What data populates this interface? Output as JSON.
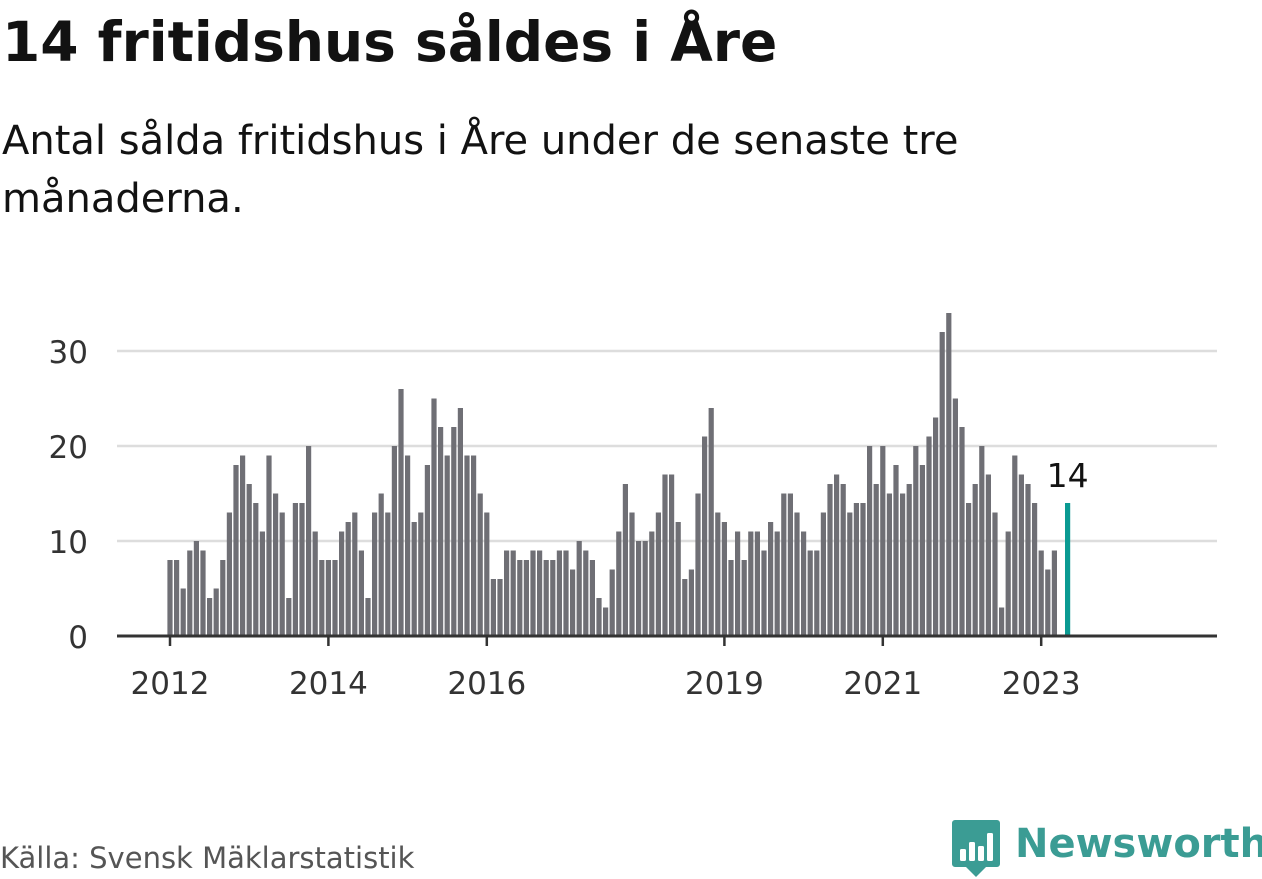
{
  "title": "14 fritidshus såldes i Åre",
  "subtitle": "Antal sålda fritidshus i Åre under de senaste tre månaderna.",
  "source": "Källa: Svensk Mäklarstatistik",
  "brand": {
    "name": "Newsworthy",
    "icon": "newsworthy-logo-icon"
  },
  "colors": {
    "bar": "#6f6f75",
    "highlight": "#0a9a92",
    "grid": "#dddddd",
    "axis": "#333333",
    "text": "#121212",
    "brand": "#3b9c94"
  },
  "chart_data": {
    "type": "bar",
    "x_unit": "month",
    "x_start": "2012-01",
    "ylim": [
      0,
      34
    ],
    "yticks": [
      0,
      10,
      20,
      30
    ],
    "ytick_labels": [
      "0",
      "10",
      "20",
      "30"
    ],
    "xticks": [
      "2012-01",
      "2014-01",
      "2016-01",
      "2019-01",
      "2021-01",
      "2023-01"
    ],
    "xtick_labels": [
      "2012",
      "2014",
      "2016",
      "2019",
      "2021",
      "2023"
    ],
    "grid": true,
    "highlight_index": 136,
    "highlight_label": "14",
    "values": [
      8,
      8,
      5,
      9,
      10,
      9,
      4,
      5,
      8,
      13,
      18,
      19,
      16,
      14,
      11,
      19,
      15,
      13,
      4,
      14,
      14,
      20,
      11,
      8,
      8,
      8,
      11,
      12,
      13,
      9,
      4,
      13,
      15,
      13,
      20,
      26,
      19,
      12,
      13,
      18,
      25,
      22,
      19,
      22,
      24,
      19,
      19,
      15,
      13,
      6,
      6,
      9,
      9,
      8,
      8,
      9,
      9,
      8,
      8,
      9,
      9,
      7,
      10,
      9,
      8,
      4,
      3,
      7,
      11,
      16,
      13,
      10,
      10,
      11,
      13,
      17,
      17,
      12,
      6,
      7,
      15,
      21,
      24,
      13,
      12,
      8,
      11,
      8,
      11,
      11,
      9,
      12,
      11,
      15,
      15,
      13,
      11,
      9,
      9,
      13,
      16,
      17,
      16,
      13,
      14,
      14,
      20,
      16,
      20,
      15,
      18,
      15,
      16,
      20,
      18,
      21,
      23,
      32,
      34,
      25,
      22,
      14,
      16,
      20,
      17,
      13,
      3,
      11,
      19,
      17,
      16,
      14,
      9,
      7,
      9,
      0,
      14
    ]
  }
}
